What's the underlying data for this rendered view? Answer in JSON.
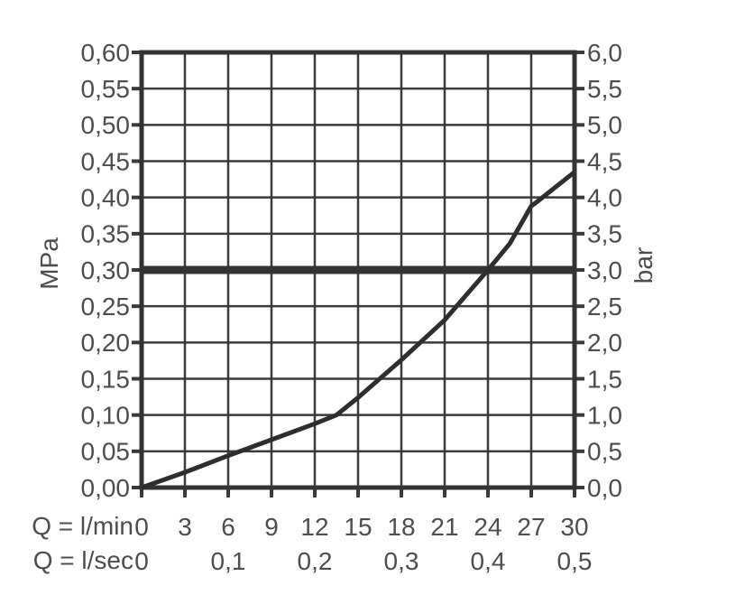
{
  "colors": {
    "grid": "#3a3a3a",
    "frame": "#333333",
    "curve": "#2e2e2e",
    "reference_line": "#333333",
    "text": "#4d4d4d",
    "background": "#ffffff"
  },
  "chart_data": {
    "type": "line",
    "title": "",
    "grid": true,
    "legend": false,
    "x_axis": {
      "range_lmin": [
        0,
        30
      ],
      "grid_step_lmin": 3,
      "rows": [
        {
          "label": "Q = l/min",
          "tick_labels": [
            "0",
            "3",
            "6",
            "9",
            "12",
            "15",
            "18",
            "21",
            "24",
            "27",
            "30"
          ],
          "tick_positions_lmin": [
            0,
            3,
            6,
            9,
            12,
            15,
            18,
            21,
            24,
            27,
            30
          ]
        },
        {
          "label": "Q = l/sec",
          "tick_labels": [
            "0",
            "0,1",
            "0,2",
            "0,3",
            "0,4",
            "0,5"
          ],
          "tick_positions_lmin": [
            0,
            6,
            12,
            18,
            24,
            30
          ]
        }
      ]
    },
    "y_left": {
      "title": "MPa",
      "range": [
        0,
        0.6
      ],
      "grid_step": 0.05,
      "tick_labels_top_to_bottom": [
        "0,60",
        "0,55",
        "0,50",
        "0,45",
        "0,40",
        "0,35",
        "0,30",
        "0,25",
        "0,20",
        "0,15",
        "0,10",
        "0,05",
        "0,00"
      ]
    },
    "y_right": {
      "title": "bar",
      "range": [
        0,
        6
      ],
      "grid_step": 0.5,
      "tick_labels_top_to_bottom": [
        "6,0",
        "5,5",
        "5,0",
        "4,5",
        "4,0",
        "3,5",
        "3,0",
        "2,5",
        "2,0",
        "1,5",
        "1,0",
        "0,5",
        "0,0"
      ]
    },
    "reference_line": {
      "y_mpa": 0.3,
      "y_bar": 3.0
    },
    "series": [
      {
        "name": "pressure-flow-curve",
        "x_lmin": [
          0,
          3,
          6,
          9,
          12,
          13.5,
          15,
          18,
          21,
          24,
          25.5,
          27,
          27.4,
          30
        ],
        "y_mpa": [
          0.0,
          0.021,
          0.044,
          0.066,
          0.088,
          0.1,
          0.124,
          0.176,
          0.231,
          0.3,
          0.336,
          0.388,
          0.394,
          0.435
        ]
      }
    ]
  }
}
